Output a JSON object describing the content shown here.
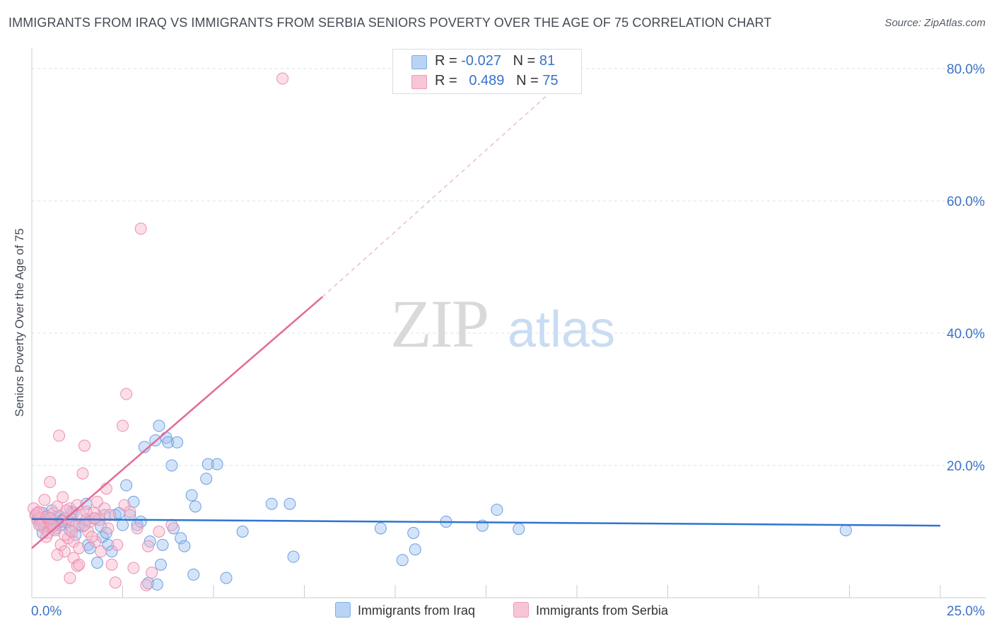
{
  "header": {
    "title": "IMMIGRANTS FROM IRAQ VS IMMIGRANTS FROM SERBIA SENIORS POVERTY OVER THE AGE OF 75 CORRELATION CHART",
    "source": "Source: ZipAtlas.com"
  },
  "watermark": {
    "zip": "ZIP",
    "atlas": "atlas"
  },
  "legend": {
    "r_label": "R =",
    "n_label": "N =",
    "series": [
      {
        "name": "Immigrants from Iraq",
        "r": "-0.027",
        "n": "81",
        "color": "#7eaee8",
        "fill": "#b9d3f4"
      },
      {
        "name": "Immigrants from Serbia",
        "r": "0.489",
        "n": "75",
        "color": "#ee9ab8",
        "fill": "#f7c6d6"
      }
    ]
  },
  "chart_data": {
    "type": "scatter",
    "title": "IMMIGRANTS FROM IRAQ VS IMMIGRANTS FROM SERBIA SENIORS POVERTY OVER THE AGE OF 75 CORRELATION CHART",
    "xlabel": "",
    "ylabel": "Seniors Poverty Over the Age of 75",
    "xlim": [
      0,
      25
    ],
    "ylim": [
      0,
      80
    ],
    "x_tick_labels": [
      "0.0%",
      "25.0%"
    ],
    "y_tick_labels": [
      "20.0%",
      "40.0%",
      "60.0%",
      "80.0%"
    ],
    "y_ticks": [
      20,
      40,
      60,
      80
    ],
    "grid": true,
    "series": [
      {
        "name": "Immigrants from Iraq",
        "color": "#3a78d6",
        "points": [
          [
            0.1,
            12.5
          ],
          [
            0.15,
            11.8
          ],
          [
            0.2,
            12.0
          ],
          [
            0.25,
            11.0
          ],
          [
            0.3,
            12.8
          ],
          [
            0.35,
            11.5
          ],
          [
            0.4,
            12.2
          ],
          [
            0.45,
            10.8
          ],
          [
            0.5,
            11.2
          ],
          [
            0.55,
            12.0
          ],
          [
            0.6,
            11.0
          ],
          [
            0.65,
            10.5
          ],
          [
            0.7,
            11.3
          ],
          [
            0.75,
            12.4
          ],
          [
            0.8,
            11.0
          ],
          [
            0.9,
            12.0
          ],
          [
            1.0,
            11.4
          ],
          [
            1.05,
            10.2
          ],
          [
            1.1,
            13.0
          ],
          [
            1.2,
            9.5
          ],
          [
            1.3,
            11.0
          ],
          [
            1.4,
            10.8
          ],
          [
            1.5,
            14.2
          ],
          [
            1.55,
            8.0
          ],
          [
            1.6,
            7.5
          ],
          [
            1.7,
            12.0
          ],
          [
            1.8,
            5.3
          ],
          [
            1.9,
            10.8
          ],
          [
            1.95,
            9.2
          ],
          [
            2.0,
            12.5
          ],
          [
            2.05,
            9.8
          ],
          [
            2.1,
            8.0
          ],
          [
            2.2,
            7.0
          ],
          [
            2.3,
            12.5
          ],
          [
            2.4,
            12.8
          ],
          [
            2.5,
            11.0
          ],
          [
            2.6,
            17.0
          ],
          [
            2.7,
            12.5
          ],
          [
            2.8,
            14.5
          ],
          [
            2.9,
            11.0
          ],
          [
            3.0,
            11.5
          ],
          [
            3.1,
            22.8
          ],
          [
            3.2,
            2.2
          ],
          [
            3.25,
            8.5
          ],
          [
            3.4,
            23.8
          ],
          [
            3.45,
            2.0
          ],
          [
            3.5,
            26.0
          ],
          [
            3.55,
            5.0
          ],
          [
            3.6,
            8.0
          ],
          [
            3.7,
            24.2
          ],
          [
            3.75,
            23.5
          ],
          [
            3.85,
            20.0
          ],
          [
            3.9,
            10.5
          ],
          [
            4.0,
            23.5
          ],
          [
            4.1,
            9.0
          ],
          [
            4.2,
            7.8
          ],
          [
            4.4,
            15.5
          ],
          [
            4.45,
            3.5
          ],
          [
            4.5,
            13.8
          ],
          [
            4.8,
            18.0
          ],
          [
            4.85,
            20.2
          ],
          [
            5.1,
            20.2
          ],
          [
            5.35,
            3.0
          ],
          [
            5.8,
            10.0
          ],
          [
            6.6,
            14.2
          ],
          [
            7.1,
            14.2
          ],
          [
            7.2,
            6.2
          ],
          [
            9.6,
            10.5
          ],
          [
            10.2,
            5.7
          ],
          [
            10.5,
            9.8
          ],
          [
            10.55,
            7.3
          ],
          [
            11.4,
            11.5
          ],
          [
            12.4,
            10.9
          ],
          [
            12.8,
            13.3
          ],
          [
            13.4,
            10.4
          ],
          [
            22.4,
            10.2
          ],
          [
            1.5,
            11.8
          ],
          [
            0.85,
            11.7
          ],
          [
            1.15,
            12.9
          ],
          [
            0.3,
            9.8
          ],
          [
            0.55,
            13.2
          ]
        ]
      },
      {
        "name": "Immigrants from Serbia",
        "color": "#e07099",
        "points": [
          [
            0.05,
            13.5
          ],
          [
            0.1,
            12.5
          ],
          [
            0.15,
            11.8
          ],
          [
            0.2,
            13.0
          ],
          [
            0.25,
            12.0
          ],
          [
            0.3,
            11.2
          ],
          [
            0.35,
            10.5
          ],
          [
            0.4,
            12.3
          ],
          [
            0.45,
            9.8
          ],
          [
            0.5,
            17.5
          ],
          [
            0.55,
            11.0
          ],
          [
            0.6,
            12.8
          ],
          [
            0.65,
            10.2
          ],
          [
            0.7,
            13.8
          ],
          [
            0.75,
            24.5
          ],
          [
            0.8,
            8.0
          ],
          [
            0.85,
            11.5
          ],
          [
            0.9,
            7.0
          ],
          [
            0.95,
            12.0
          ],
          [
            1.0,
            9.0
          ],
          [
            1.05,
            13.5
          ],
          [
            1.1,
            11.8
          ],
          [
            1.15,
            8.5
          ],
          [
            1.2,
            10.8
          ],
          [
            1.25,
            14.0
          ],
          [
            1.3,
            7.5
          ],
          [
            1.35,
            12.5
          ],
          [
            1.4,
            18.8
          ],
          [
            1.45,
            23.0
          ],
          [
            1.5,
            13.0
          ],
          [
            1.55,
            10.0
          ],
          [
            1.6,
            11.5
          ],
          [
            1.7,
            12.8
          ],
          [
            1.75,
            8.5
          ],
          [
            1.8,
            14.5
          ],
          [
            1.85,
            11.8
          ],
          [
            1.9,
            7.0
          ],
          [
            2.0,
            13.5
          ],
          [
            2.05,
            16.5
          ],
          [
            2.1,
            10.5
          ],
          [
            2.15,
            12.5
          ],
          [
            2.2,
            5.0
          ],
          [
            2.3,
            2.3
          ],
          [
            2.35,
            8.0
          ],
          [
            2.5,
            26.0
          ],
          [
            2.55,
            14.0
          ],
          [
            2.6,
            30.8
          ],
          [
            2.7,
            13.0
          ],
          [
            2.8,
            4.5
          ],
          [
            2.9,
            10.5
          ],
          [
            3.0,
            55.8
          ],
          [
            3.15,
            1.9
          ],
          [
            3.2,
            7.8
          ],
          [
            3.3,
            3.8
          ],
          [
            3.5,
            10.0
          ],
          [
            3.85,
            11.0
          ],
          [
            6.9,
            78.5
          ],
          [
            0.6,
            10.8
          ],
          [
            0.9,
            9.5
          ],
          [
            1.15,
            6.0
          ],
          [
            1.25,
            4.8
          ],
          [
            1.05,
            3.0
          ],
          [
            1.3,
            5.0
          ],
          [
            0.7,
            6.5
          ],
          [
            0.35,
            14.8
          ],
          [
            0.15,
            12.8
          ],
          [
            0.4,
            9.2
          ],
          [
            0.95,
            13.2
          ],
          [
            1.65,
            9.2
          ],
          [
            1.45,
            11.0
          ],
          [
            0.85,
            15.2
          ],
          [
            0.2,
            11.0
          ],
          [
            1.75,
            12.0
          ],
          [
            1.1,
            10.0
          ],
          [
            0.5,
            12.0
          ]
        ]
      }
    ],
    "trend_lines": [
      {
        "series": "Immigrants from Iraq",
        "solid_x": [
          0,
          25
        ],
        "solid_y": [
          11.9,
          10.9
        ]
      },
      {
        "series": "Immigrants from Serbia",
        "solid_x": [
          0,
          8.0
        ],
        "solid_y": [
          7.5,
          45.5
        ],
        "dashed_x": [
          8.0,
          15.0
        ],
        "dashed_y": [
          45.5,
          80.0
        ]
      }
    ]
  }
}
